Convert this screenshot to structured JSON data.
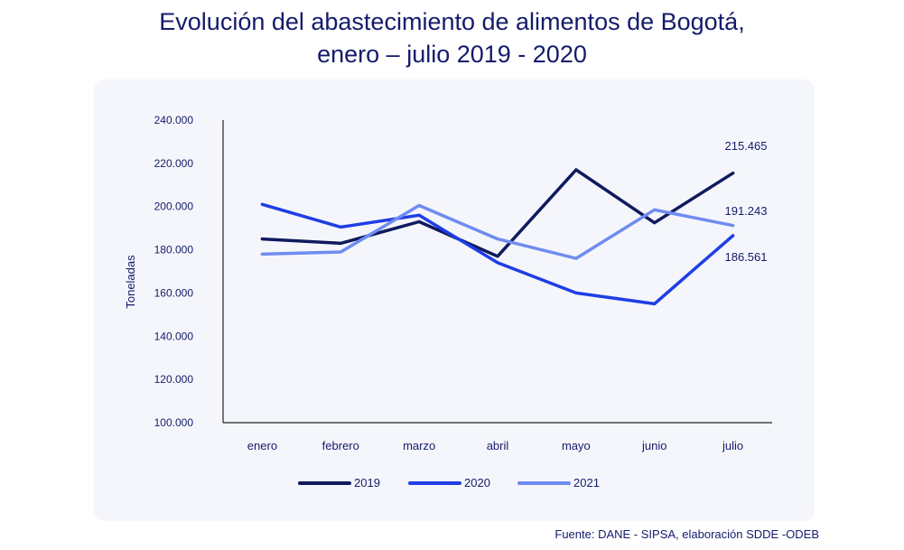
{
  "title_line1": "Evolución del abastecimiento de alimentos de Bogotá,",
  "title_line2": "enero – julio 2019 - 2020",
  "source": "Fuente: DANE - SIPSA, elaboración SDDE -ODEB",
  "chart_data": {
    "type": "line",
    "title": "Evolución del abastecimiento de alimentos de Bogotá, enero – julio 2019 - 2020",
    "xlabel": "",
    "ylabel": "Toneladas",
    "ylim": [
      100000,
      240000
    ],
    "yticks": [
      100000,
      120000,
      140000,
      160000,
      180000,
      200000,
      220000,
      240000
    ],
    "ytick_labels": [
      "100.000",
      "120.000",
      "140.000",
      "160.000",
      "180.000",
      "200.000",
      "220.000",
      "240.000"
    ],
    "categories": [
      "enero",
      "febrero",
      "marzo",
      "abril",
      "mayo",
      "junio",
      "julio"
    ],
    "grid": false,
    "legend_position": "bottom",
    "series": [
      {
        "name": "2019",
        "color": "#0f1a5e",
        "values": [
          185000,
          183000,
          193000,
          177000,
          217000,
          192500,
          215465
        ],
        "end_label": "215.465"
      },
      {
        "name": "2020",
        "color": "#1f3ee6",
        "values": [
          201000,
          190500,
          196000,
          174000,
          160000,
          155000,
          186561
        ],
        "end_label": "186.561"
      },
      {
        "name": "2021",
        "color": "#6f8cf0",
        "values": [
          178000,
          179000,
          200500,
          185000,
          176000,
          198500,
          191243
        ],
        "end_label": "191.243"
      }
    ]
  }
}
